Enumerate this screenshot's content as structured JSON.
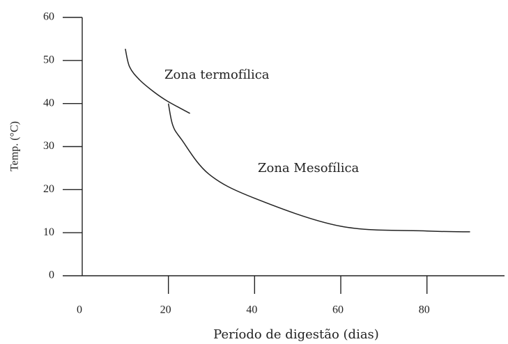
{
  "chart_data": {
    "type": "line",
    "xlabel": "Período de digestão (dias)",
    "ylabel": "Temp. (°C)",
    "xlim": [
      0,
      98
    ],
    "ylim": [
      0,
      60
    ],
    "xticks": [
      0,
      20,
      40,
      60,
      80
    ],
    "yticks": [
      0,
      10,
      20,
      30,
      40,
      50,
      60
    ],
    "series": [
      {
        "name": "Zona termofílica",
        "color": "#222222",
        "x": [
          10,
          11,
          13.3,
          16.5,
          19.7,
          25
        ],
        "values": [
          52.7,
          48.5,
          45.5,
          42.8,
          40.6,
          37.7
        ]
      },
      {
        "name": "Zona Mesofílica",
        "color": "#222222",
        "x": [
          20,
          21,
          23,
          29.4,
          40,
          60,
          80,
          90
        ],
        "values": [
          40,
          35,
          31.7,
          23.6,
          18,
          11.5,
          10.4,
          10.2
        ]
      }
    ]
  }
}
